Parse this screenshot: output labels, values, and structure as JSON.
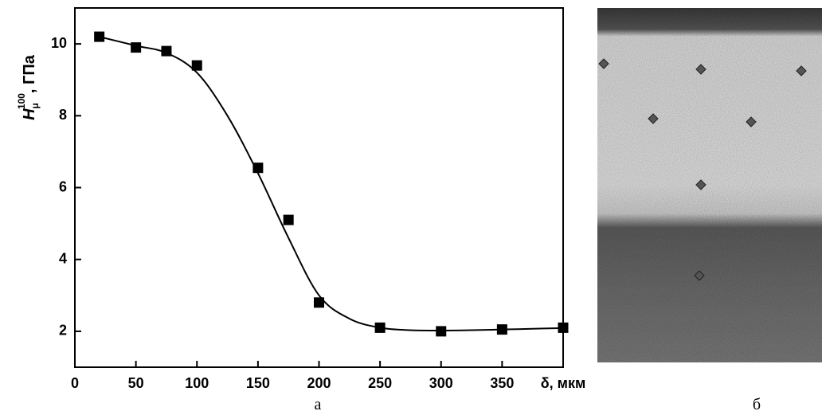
{
  "chart_data": {
    "type": "scatter",
    "x_label": "δ, мкм",
    "y_label": {
      "symbol": "H",
      "subscript": "μ",
      "superscript": "100",
      "unit": ", ГПа"
    },
    "x": [
      20,
      50,
      75,
      100,
      150,
      175,
      200,
      250,
      300,
      350,
      400
    ],
    "values": [
      10.2,
      9.9,
      9.8,
      9.4,
      6.55,
      5.1,
      2.8,
      2.1,
      2.0,
      2.05,
      2.1
    ],
    "color": "#000000",
    "fit": {
      "x": [
        20,
        50,
        75,
        100,
        125,
        150,
        175,
        200,
        225,
        250,
        275,
        300,
        325,
        350,
        375,
        400
      ],
      "values": [
        10.2,
        9.95,
        9.75,
        9.2,
        8.0,
        6.4,
        4.6,
        3.0,
        2.35,
        2.1,
        2.03,
        2.02,
        2.03,
        2.05,
        2.07,
        2.09
      ]
    },
    "xlim": [
      0,
      400
    ],
    "ylim": [
      1,
      11
    ],
    "xticks": [
      0,
      50,
      100,
      150,
      200,
      250,
      300,
      350
    ],
    "yticks": [
      2,
      4,
      6,
      8,
      10
    ]
  },
  "captions": [
    "а",
    "б"
  ]
}
